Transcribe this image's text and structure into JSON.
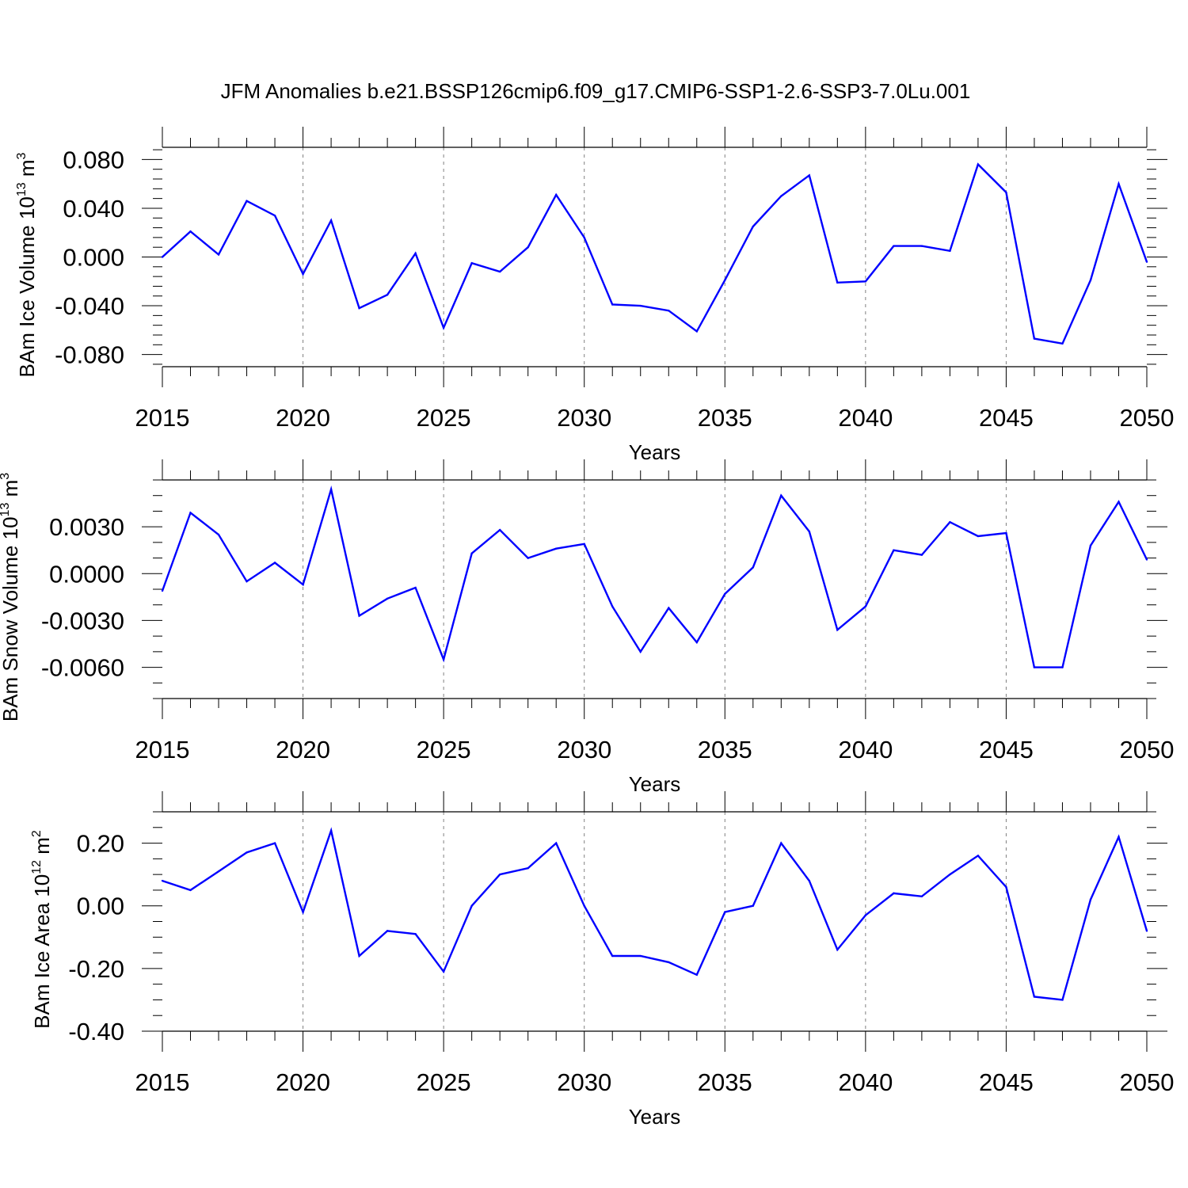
{
  "title": "JFM Anomalies b.e21.BSSP126cmip6.f09_g17.CMIP6-SSP1-2.6-SSP3-7.0Lu.001",
  "colors": {
    "line": "#0000ff",
    "axis": "#000000",
    "grid": "#808080"
  },
  "chart_data": [
    {
      "type": "line",
      "name": "ice-volume",
      "ylabel_main": "BAm Ice Volume 10",
      "ylabel_exp": "13",
      "ylabel_unit": " m",
      "ylabel_unit_exp": "3",
      "xlabel": "Years",
      "xlim": [
        2015,
        2050
      ],
      "ylim": [
        -0.09,
        0.09
      ],
      "ytick_values": [
        -0.08,
        -0.04,
        0.0,
        0.04,
        0.08
      ],
      "yticks": [
        "-0.080",
        "-0.040",
        "0.000",
        "0.040",
        "0.080"
      ],
      "yminor_step": 0.008,
      "xtick_values": [
        2015,
        2020,
        2025,
        2030,
        2035,
        2040,
        2045,
        2050
      ],
      "xticks": [
        "2015",
        "2020",
        "2025",
        "2030",
        "2035",
        "2040",
        "2045",
        "2050"
      ],
      "grid_x": [
        2020,
        2025,
        2030,
        2035,
        2040,
        2045
      ],
      "x": [
        2015,
        2016,
        2017,
        2018,
        2019,
        2020,
        2021,
        2022,
        2023,
        2024,
        2025,
        2026,
        2027,
        2028,
        2029,
        2030,
        2031,
        2032,
        2033,
        2034,
        2035,
        2036,
        2037,
        2038,
        2039,
        2040,
        2041,
        2042,
        2043,
        2044,
        2045,
        2046,
        2047,
        2048,
        2049,
        2050
      ],
      "values": [
        0.0,
        0.021,
        0.002,
        0.046,
        0.034,
        -0.014,
        0.03,
        -0.042,
        -0.031,
        0.003,
        -0.058,
        -0.005,
        -0.012,
        0.008,
        0.051,
        0.016,
        -0.039,
        -0.04,
        -0.044,
        -0.061,
        -0.019,
        0.025,
        0.05,
        0.067,
        -0.021,
        -0.02,
        0.009,
        0.009,
        0.005,
        0.076,
        0.053,
        -0.067,
        -0.071,
        -0.019,
        0.06,
        -0.004
      ]
    },
    {
      "type": "line",
      "name": "snow-volume",
      "ylabel_main": "BAm Snow Volume 10",
      "ylabel_exp": "13",
      "ylabel_unit": " m",
      "ylabel_unit_exp": "3",
      "xlabel": "Years",
      "xlim": [
        2015,
        2050
      ],
      "ylim": [
        -0.008,
        0.006
      ],
      "ytick_values": [
        -0.006,
        -0.003,
        0.0,
        0.003
      ],
      "yticks": [
        "-0.0060",
        "-0.0030",
        "0.0000",
        "0.0030"
      ],
      "yminor_step": 0.001,
      "xtick_values": [
        2015,
        2020,
        2025,
        2030,
        2035,
        2040,
        2045,
        2050
      ],
      "xticks": [
        "2015",
        "2020",
        "2025",
        "2030",
        "2035",
        "2040",
        "2045",
        "2050"
      ],
      "grid_x": [
        2020,
        2025,
        2030,
        2035,
        2040,
        2045
      ],
      "x": [
        2015,
        2016,
        2017,
        2018,
        2019,
        2020,
        2021,
        2022,
        2023,
        2024,
        2025,
        2026,
        2027,
        2028,
        2029,
        2030,
        2031,
        2032,
        2033,
        2034,
        2035,
        2036,
        2037,
        2038,
        2039,
        2040,
        2041,
        2042,
        2043,
        2044,
        2045,
        2046,
        2047,
        2048,
        2049,
        2050
      ],
      "values": [
        -0.0011,
        0.0039,
        0.0025,
        -0.0005,
        0.0007,
        -0.0007,
        0.0054,
        -0.0027,
        -0.0016,
        -0.0009,
        -0.0055,
        0.0013,
        0.0028,
        0.001,
        0.0016,
        0.0019,
        -0.0021,
        -0.005,
        -0.0022,
        -0.0044,
        -0.0013,
        0.0004,
        0.005,
        0.0027,
        -0.0036,
        -0.0021,
        0.0015,
        0.0012,
        0.0033,
        0.0024,
        0.0026,
        -0.006,
        -0.006,
        0.0018,
        0.0046,
        0.0009
      ]
    },
    {
      "type": "line",
      "name": "ice-area",
      "ylabel_main": "BAm Ice Area 10",
      "ylabel_exp": "12",
      "ylabel_unit": " m",
      "ylabel_unit_exp": "2",
      "xlabel": "Years",
      "xlim": [
        2015,
        2050
      ],
      "ylim": [
        -0.4,
        0.3
      ],
      "ytick_values": [
        -0.4,
        -0.2,
        0.0,
        0.2
      ],
      "yticks": [
        "-0.40",
        "-0.20",
        "0.00",
        "0.20"
      ],
      "yminor_step": 0.05,
      "xtick_values": [
        2015,
        2020,
        2025,
        2030,
        2035,
        2040,
        2045,
        2050
      ],
      "xticks": [
        "2015",
        "2020",
        "2025",
        "2030",
        "2035",
        "2040",
        "2045",
        "2050"
      ],
      "grid_x": [
        2020,
        2025,
        2030,
        2035,
        2040,
        2045
      ],
      "x": [
        2015,
        2016,
        2017,
        2018,
        2019,
        2020,
        2021,
        2022,
        2023,
        2024,
        2025,
        2026,
        2027,
        2028,
        2029,
        2030,
        2031,
        2032,
        2033,
        2034,
        2035,
        2036,
        2037,
        2038,
        2039,
        2040,
        2041,
        2042,
        2043,
        2044,
        2045,
        2046,
        2047,
        2048,
        2049,
        2050
      ],
      "values": [
        0.08,
        0.05,
        0.11,
        0.17,
        0.2,
        -0.02,
        0.24,
        -0.16,
        -0.08,
        -0.09,
        -0.21,
        0.0,
        0.1,
        0.12,
        0.2,
        0.0,
        -0.16,
        -0.16,
        -0.18,
        -0.22,
        -0.02,
        0.0,
        0.2,
        0.08,
        -0.14,
        -0.03,
        0.04,
        0.03,
        0.1,
        0.16,
        0.06,
        -0.29,
        -0.3,
        0.02,
        0.22,
        -0.08
      ]
    }
  ]
}
